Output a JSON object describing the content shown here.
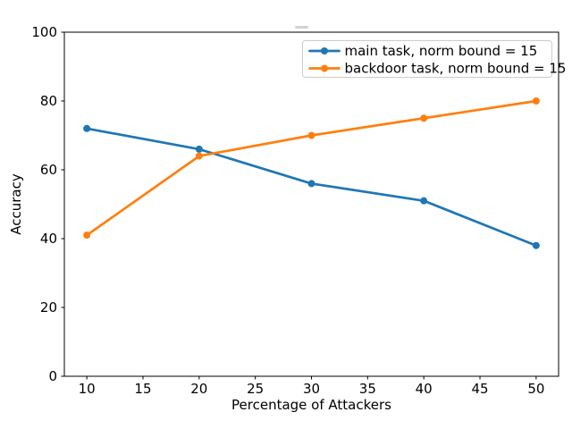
{
  "figure": {
    "background": "#ffffff",
    "spine_color": "#000000",
    "tick_color": "#000000",
    "clipped_title_artifact_color": "#d2d2d2",
    "legend": {
      "border_color": "#cccccc",
      "background": "#ffffff",
      "position": "upper right"
    }
  },
  "chart_data": {
    "type": "line",
    "title": "",
    "xlabel": "Percentage of Attackers",
    "ylabel": "Accuracy",
    "x": [
      10,
      20,
      30,
      40,
      50
    ],
    "series": [
      {
        "name": "main task, norm bound = 15",
        "color": "#1f77b4",
        "marker": "o",
        "values": [
          72,
          66,
          56,
          51,
          38
        ]
      },
      {
        "name": "backdoor task, norm bound = 15",
        "color": "#ff7f0e",
        "marker": "o",
        "values": [
          41,
          64,
          70,
          75,
          80
        ]
      }
    ],
    "xlim": [
      8,
      52
    ],
    "ylim": [
      0,
      100
    ],
    "xticks": [
      10,
      15,
      20,
      25,
      30,
      35,
      40,
      45,
      50
    ],
    "yticks": [
      0,
      20,
      40,
      60,
      80,
      100
    ],
    "grid": false,
    "legend_position": "upper right"
  }
}
